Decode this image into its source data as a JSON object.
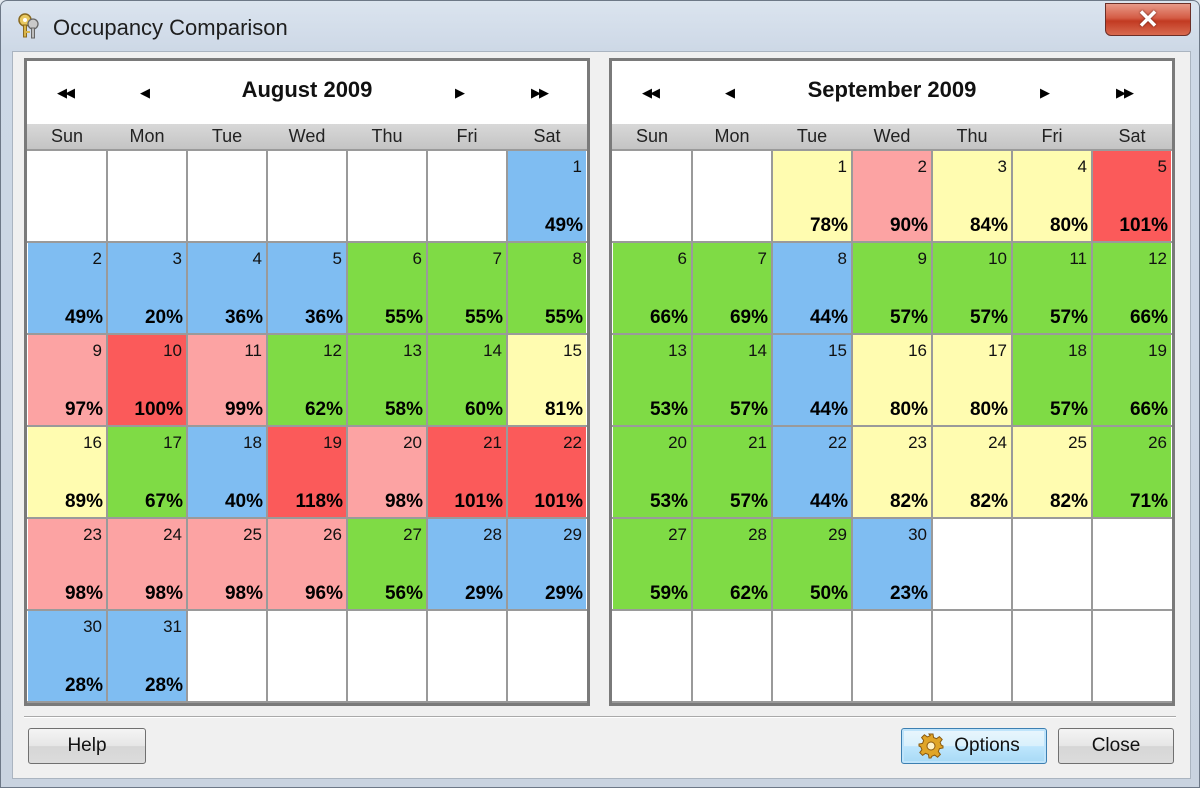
{
  "window": {
    "title": "Occupancy Comparison",
    "app_icon": "keys-icon",
    "close_glyph": "✕"
  },
  "colors": {
    "blue": "#7fbdf2",
    "green": "#7fdb45",
    "yellow": "#fffcb0",
    "pink": "#fca3a3",
    "red": "#fb5a5a",
    "empty": "#ffffff"
  },
  "day_names": [
    "Sun",
    "Mon",
    "Tue",
    "Wed",
    "Thu",
    "Fri",
    "Sat"
  ],
  "nav": {
    "first": "◀◀",
    "prev": "◀",
    "next": "▶",
    "last": "▶▶"
  },
  "calendars": [
    {
      "title": "August 2009",
      "start_weekday": 6,
      "days": [
        {
          "d": 1,
          "pct": "49%",
          "c": "blue"
        },
        {
          "d": 2,
          "pct": "49%",
          "c": "blue"
        },
        {
          "d": 3,
          "pct": "20%",
          "c": "blue"
        },
        {
          "d": 4,
          "pct": "36%",
          "c": "blue"
        },
        {
          "d": 5,
          "pct": "36%",
          "c": "blue"
        },
        {
          "d": 6,
          "pct": "55%",
          "c": "green"
        },
        {
          "d": 7,
          "pct": "55%",
          "c": "green"
        },
        {
          "d": 8,
          "pct": "55%",
          "c": "green"
        },
        {
          "d": 9,
          "pct": "97%",
          "c": "pink"
        },
        {
          "d": 10,
          "pct": "100%",
          "c": "red"
        },
        {
          "d": 11,
          "pct": "99%",
          "c": "pink"
        },
        {
          "d": 12,
          "pct": "62%",
          "c": "green"
        },
        {
          "d": 13,
          "pct": "58%",
          "c": "green"
        },
        {
          "d": 14,
          "pct": "60%",
          "c": "green"
        },
        {
          "d": 15,
          "pct": "81%",
          "c": "yellow"
        },
        {
          "d": 16,
          "pct": "89%",
          "c": "yellow"
        },
        {
          "d": 17,
          "pct": "67%",
          "c": "green"
        },
        {
          "d": 18,
          "pct": "40%",
          "c": "blue"
        },
        {
          "d": 19,
          "pct": "118%",
          "c": "red"
        },
        {
          "d": 20,
          "pct": "98%",
          "c": "pink"
        },
        {
          "d": 21,
          "pct": "101%",
          "c": "red"
        },
        {
          "d": 22,
          "pct": "101%",
          "c": "red"
        },
        {
          "d": 23,
          "pct": "98%",
          "c": "pink"
        },
        {
          "d": 24,
          "pct": "98%",
          "c": "pink"
        },
        {
          "d": 25,
          "pct": "98%",
          "c": "pink"
        },
        {
          "d": 26,
          "pct": "96%",
          "c": "pink"
        },
        {
          "d": 27,
          "pct": "56%",
          "c": "green"
        },
        {
          "d": 28,
          "pct": "29%",
          "c": "blue"
        },
        {
          "d": 29,
          "pct": "29%",
          "c": "blue"
        },
        {
          "d": 30,
          "pct": "28%",
          "c": "blue"
        },
        {
          "d": 31,
          "pct": "28%",
          "c": "blue"
        }
      ]
    },
    {
      "title": "September 2009",
      "start_weekday": 2,
      "days": [
        {
          "d": 1,
          "pct": "78%",
          "c": "yellow"
        },
        {
          "d": 2,
          "pct": "90%",
          "c": "pink"
        },
        {
          "d": 3,
          "pct": "84%",
          "c": "yellow"
        },
        {
          "d": 4,
          "pct": "80%",
          "c": "yellow"
        },
        {
          "d": 5,
          "pct": "101%",
          "c": "red"
        },
        {
          "d": 6,
          "pct": "66%",
          "c": "green"
        },
        {
          "d": 7,
          "pct": "69%",
          "c": "green"
        },
        {
          "d": 8,
          "pct": "44%",
          "c": "blue"
        },
        {
          "d": 9,
          "pct": "57%",
          "c": "green"
        },
        {
          "d": 10,
          "pct": "57%",
          "c": "green"
        },
        {
          "d": 11,
          "pct": "57%",
          "c": "green"
        },
        {
          "d": 12,
          "pct": "66%",
          "c": "green"
        },
        {
          "d": 13,
          "pct": "53%",
          "c": "green"
        },
        {
          "d": 14,
          "pct": "57%",
          "c": "green"
        },
        {
          "d": 15,
          "pct": "44%",
          "c": "blue"
        },
        {
          "d": 16,
          "pct": "80%",
          "c": "yellow"
        },
        {
          "d": 17,
          "pct": "80%",
          "c": "yellow"
        },
        {
          "d": 18,
          "pct": "57%",
          "c": "green"
        },
        {
          "d": 19,
          "pct": "66%",
          "c": "green"
        },
        {
          "d": 20,
          "pct": "53%",
          "c": "green"
        },
        {
          "d": 21,
          "pct": "57%",
          "c": "green"
        },
        {
          "d": 22,
          "pct": "44%",
          "c": "blue"
        },
        {
          "d": 23,
          "pct": "82%",
          "c": "yellow"
        },
        {
          "d": 24,
          "pct": "82%",
          "c": "yellow"
        },
        {
          "d": 25,
          "pct": "82%",
          "c": "yellow"
        },
        {
          "d": 26,
          "pct": "71%",
          "c": "green"
        },
        {
          "d": 27,
          "pct": "59%",
          "c": "green"
        },
        {
          "d": 28,
          "pct": "62%",
          "c": "green"
        },
        {
          "d": 29,
          "pct": "50%",
          "c": "green"
        },
        {
          "d": 30,
          "pct": "23%",
          "c": "blue"
        }
      ]
    }
  ],
  "buttons": {
    "help": "Help",
    "options": "Options",
    "options_icon": "gear-icon",
    "close": "Close"
  }
}
